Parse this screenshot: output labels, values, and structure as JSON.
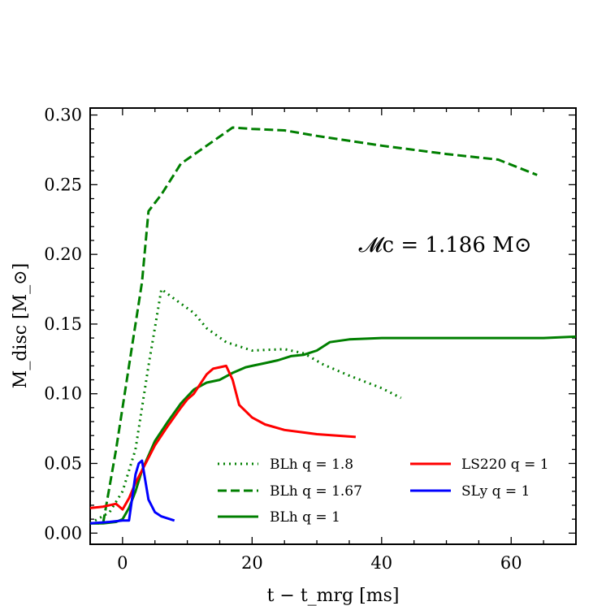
{
  "chart_data": {
    "type": "line",
    "title": "",
    "xlabel": "t − t_mrg [ms]",
    "ylabel": "M_disc [M_⊙]",
    "xlim": [
      -5,
      70
    ],
    "ylim": [
      -0.008,
      0.305
    ],
    "xticks": [
      0,
      20,
      40,
      60
    ],
    "yticks": [
      0.0,
      0.05,
      0.1,
      0.15,
      0.2,
      0.25,
      0.3
    ],
    "ytick_labels": [
      "0.00",
      "0.05",
      "0.10",
      "0.15",
      "0.20",
      "0.25",
      "0.30"
    ],
    "annotation": "𝓜c = 1.186 M⊙",
    "legend_position": "lower-right",
    "series": [
      {
        "name": "BLh q = 1.8",
        "color": "#007f00",
        "style": "dotted",
        "x": [
          -5,
          -2,
          0,
          2,
          4,
          6,
          8,
          11,
          13,
          16,
          20,
          25,
          28,
          31,
          35,
          40,
          43
        ],
        "y": [
          0.007,
          0.015,
          0.03,
          0.06,
          0.12,
          0.175,
          0.168,
          0.158,
          0.147,
          0.137,
          0.131,
          0.132,
          0.129,
          0.121,
          0.113,
          0.104,
          0.097
        ]
      },
      {
        "name": "BLh q = 1.67",
        "color": "#007f00",
        "style": "dashed",
        "x": [
          -5,
          -3,
          -1,
          1,
          3,
          4,
          6,
          9,
          13,
          17,
          20,
          25,
          30,
          40,
          50,
          58,
          64
        ],
        "y": [
          0.007,
          0.007,
          0.06,
          0.12,
          0.18,
          0.231,
          0.243,
          0.265,
          0.278,
          0.291,
          0.29,
          0.289,
          0.285,
          0.278,
          0.272,
          0.268,
          0.257
        ]
      },
      {
        "name": "BLh q = 1",
        "color": "#007f00",
        "style": "solid",
        "x": [
          -5,
          -3,
          -1,
          0,
          1,
          2,
          3,
          5,
          7,
          9,
          11,
          13,
          15,
          17,
          19,
          20,
          22,
          24,
          26,
          28,
          30,
          32,
          35,
          40,
          45,
          50,
          55,
          60,
          65,
          70
        ],
        "y": [
          0.007,
          0.007,
          0.008,
          0.01,
          0.018,
          0.03,
          0.045,
          0.066,
          0.08,
          0.093,
          0.103,
          0.108,
          0.11,
          0.115,
          0.119,
          0.12,
          0.122,
          0.124,
          0.127,
          0.128,
          0.131,
          0.137,
          0.139,
          0.14,
          0.14,
          0.14,
          0.14,
          0.14,
          0.14,
          0.141
        ]
      },
      {
        "name": "LS220 q = 1",
        "color": "#ff0000",
        "style": "solid",
        "x": [
          -5,
          -3,
          -1,
          0,
          1,
          2,
          3,
          5,
          7,
          9,
          10,
          11,
          12,
          13,
          14,
          15,
          16,
          17,
          18,
          20,
          22,
          25,
          30,
          36
        ],
        "y": [
          0.018,
          0.019,
          0.021,
          0.017,
          0.025,
          0.036,
          0.045,
          0.063,
          0.077,
          0.09,
          0.096,
          0.1,
          0.107,
          0.114,
          0.118,
          0.119,
          0.12,
          0.11,
          0.092,
          0.083,
          0.078,
          0.074,
          0.071,
          0.069
        ]
      },
      {
        "name": "SLy q = 1",
        "color": "#0000ff",
        "style": "solid",
        "x": [
          -5,
          -2,
          0,
          1,
          2,
          2.5,
          3,
          4,
          5,
          6,
          8
        ],
        "y": [
          0.007,
          0.008,
          0.009,
          0.009,
          0.042,
          0.05,
          0.052,
          0.024,
          0.015,
          0.012,
          0.009
        ]
      }
    ]
  }
}
